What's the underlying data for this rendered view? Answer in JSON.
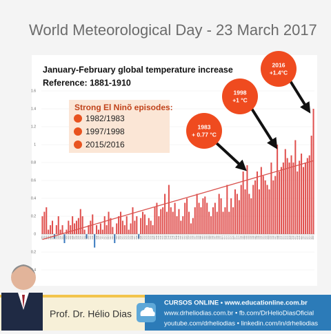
{
  "title": "World Meteorological Day - 23 March 2017",
  "chart_data": {
    "type": "bar",
    "title": "January-February global temperature increase",
    "subtitle": "Reference: 1881-1910",
    "x": [
      1881,
      1882,
      1883,
      1884,
      1885,
      1886,
      1887,
      1888,
      1889,
      1890,
      1891,
      1892,
      1893,
      1894,
      1895,
      1896,
      1897,
      1898,
      1899,
      1900,
      1901,
      1902,
      1903,
      1904,
      1905,
      1906,
      1907,
      1908,
      1909,
      1910,
      1911,
      1912,
      1913,
      1914,
      1915,
      1916,
      1917,
      1918,
      1919,
      1920,
      1921,
      1922,
      1923,
      1924,
      1925,
      1926,
      1927,
      1928,
      1929,
      1930,
      1931,
      1932,
      1933,
      1934,
      1935,
      1936,
      1937,
      1938,
      1939,
      1940,
      1941,
      1942,
      1943,
      1944,
      1945,
      1946,
      1947,
      1948,
      1949,
      1950,
      1951,
      1952,
      1953,
      1954,
      1955,
      1956,
      1957,
      1958,
      1959,
      1960,
      1961,
      1962,
      1963,
      1964,
      1965,
      1966,
      1967,
      1968,
      1969,
      1970,
      1971,
      1972,
      1973,
      1974,
      1975,
      1976,
      1977,
      1978,
      1979,
      1980,
      1981,
      1982,
      1983,
      1984,
      1985,
      1986,
      1987,
      1988,
      1989,
      1990,
      1991,
      1992,
      1993,
      1994,
      1995,
      1996,
      1997,
      1998,
      1999,
      2000,
      2001,
      2002,
      2003,
      2004,
      2005,
      2006,
      2007,
      2008,
      2009,
      2010,
      2011,
      2012,
      2013,
      2014,
      2015,
      2016
    ],
    "values": [
      0.2,
      0.25,
      0.3,
      0.05,
      0.1,
      0.15,
      -0.05,
      0.1,
      0.2,
      0.05,
      0.1,
      -0.1,
      0.05,
      0.15,
      0.1,
      0.2,
      0.12,
      0.15,
      0.18,
      0.28,
      0.2,
      0.05,
      -0.05,
      0.1,
      0.15,
      0.22,
      -0.15,
      0.1,
      0.05,
      0.12,
      0.05,
      0.2,
      0.1,
      0.25,
      0.18,
      0.08,
      -0.1,
      0.12,
      0.2,
      0.25,
      0.15,
      0.1,
      0.2,
      0.05,
      0.12,
      0.3,
      0.15,
      0.2,
      -0.05,
      0.18,
      0.25,
      0.22,
      0.1,
      0.18,
      0.15,
      0.1,
      0.3,
      0.35,
      0.2,
      0.28,
      0.3,
      0.45,
      0.25,
      0.55,
      0.3,
      0.25,
      0.35,
      0.2,
      0.28,
      0.15,
      0.2,
      0.35,
      0.4,
      0.25,
      0.12,
      0.18,
      0.3,
      0.45,
      0.35,
      0.3,
      0.4,
      0.42,
      0.35,
      0.25,
      0.2,
      0.3,
      0.35,
      0.25,
      0.45,
      0.4,
      0.25,
      0.3,
      0.55,
      0.25,
      0.4,
      0.3,
      0.5,
      0.45,
      0.38,
      0.55,
      0.7,
      0.5,
      0.77,
      0.45,
      0.4,
      0.55,
      0.6,
      0.7,
      0.5,
      0.75,
      0.65,
      0.6,
      0.55,
      0.5,
      0.8,
      0.6,
      0.65,
      1.0,
      0.7,
      0.75,
      0.8,
      0.95,
      0.85,
      0.8,
      0.88,
      0.8,
      1.05,
      0.7,
      0.82,
      0.9,
      0.75,
      0.8,
      0.85,
      0.88,
      1.1,
      1.4
    ],
    "color_positive": "#e0504e",
    "color_negative": "#3b7bbf",
    "trend_line": {
      "x": [
        1881,
        2016
      ],
      "values": [
        -0.06,
        0.82
      ],
      "color": "#d9534f"
    },
    "ylim": [
      -0.45,
      1.65
    ],
    "yticks": [
      {
        "value": -0.4,
        "label": "0.4"
      },
      {
        "value": -0.2,
        "label": "0.2"
      },
      0,
      0.2,
      0.4,
      0.6,
      0.8,
      1,
      1.2,
      1.4,
      1.6
    ],
    "grid": true,
    "legend": {
      "title": "Strong El Ninõ episodes:",
      "items": [
        "1982/1983",
        "1997/1998",
        "2015/2016"
      ],
      "color": "#e8531f"
    },
    "annotations": [
      {
        "lines": [
          "1983",
          "+ 0.77 °C"
        ]
      },
      {
        "lines": [
          "1998",
          "+1 °C"
        ]
      },
      {
        "lines": [
          "2016",
          "+1.4°C"
        ]
      }
    ],
    "annotation_color": "#ef4b1f"
  },
  "footer": {
    "name": "Prof. Dr. Hélio Dias",
    "lines": [
      "CURSOS ONLINE • www.educationline.com.br",
      "www.drheliodias.com.br • fb.com/DrHelioDiasOficial",
      "youtube.com/drheliodias • linkedin.com/in/drheliodias"
    ]
  }
}
